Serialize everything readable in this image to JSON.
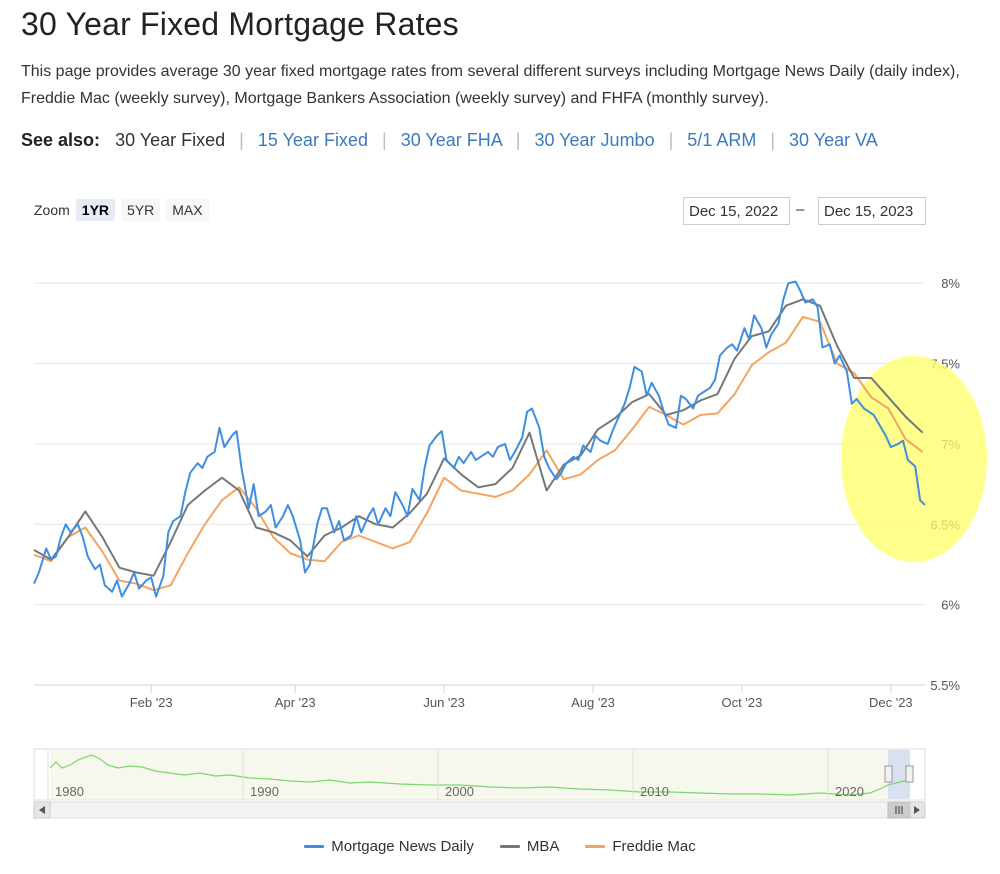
{
  "page": {
    "title": "30 Year Fixed Mortgage Rates",
    "description": "This page provides average 30 year fixed mortgage rates from several different surveys including Mortgage News Daily (daily index), Freddie Mac (weekly survey), Mortgage Bankers Association (weekly survey) and FHFA (monthly survey)."
  },
  "see_also": {
    "label": "See also:",
    "current": "30 Year Fixed",
    "links": [
      "15 Year Fixed",
      "30 Year FHA",
      "30 Year Jumbo",
      "5/1 ARM",
      "30 Year VA"
    ],
    "separator": "|"
  },
  "zoom": {
    "label": "Zoom",
    "buttons": [
      "1YR",
      "5YR",
      "MAX"
    ],
    "active": "1YR"
  },
  "range": {
    "from": "Dec 15, 2022",
    "to": "Dec 15, 2023",
    "separator": "–"
  },
  "colors": {
    "mnd": "#3f8fe0",
    "mba": "#777777",
    "freddie": "#f4a45f",
    "navigator": "#7bd66b",
    "highlight": "#ffff66"
  },
  "legend": [
    "Mortgage News Daily",
    "MBA",
    "Freddie Mac"
  ],
  "navigator": {
    "years": [
      "1980",
      "1990",
      "2000",
      "2010",
      "2020"
    ]
  },
  "chart_data": {
    "type": "line",
    "title": "",
    "x_range": [
      "2022-12-15",
      "2023-12-15"
    ],
    "xlabel": "",
    "ylabel": "",
    "x_tick_labels": [
      "Feb '23",
      "Apr '23",
      "Jun '23",
      "Aug '23",
      "Oct '23",
      "Dec '23"
    ],
    "x_tick_dates": [
      "2023-02-01",
      "2023-04-01",
      "2023-06-01",
      "2023-08-01",
      "2023-10-01",
      "2023-12-01"
    ],
    "y_tick_labels": [
      "5.5%",
      "6%",
      "6.5%",
      "7%",
      "7.5%",
      "8%"
    ],
    "y_ticks": [
      5.5,
      6,
      6.5,
      7,
      7.5,
      8
    ],
    "ylim": [
      5.5,
      8.25
    ],
    "annotation": "yellow ellipse highlighting Nov–Dec 2023 rate decline",
    "series": [
      {
        "name": "Mortgage News Daily",
        "points": [
          [
            "2022-12-15",
            6.13
          ],
          [
            "2022-12-17",
            6.2
          ],
          [
            "2022-12-20",
            6.35
          ],
          [
            "2022-12-22",
            6.28
          ],
          [
            "2022-12-24",
            6.3
          ],
          [
            "2022-12-26",
            6.42
          ],
          [
            "2022-12-28",
            6.5
          ],
          [
            "2022-12-30",
            6.45
          ],
          [
            "2023-01-02",
            6.5
          ],
          [
            "2023-01-04",
            6.42
          ],
          [
            "2023-01-06",
            6.3
          ],
          [
            "2023-01-09",
            6.22
          ],
          [
            "2023-01-11",
            6.25
          ],
          [
            "2023-01-13",
            6.12
          ],
          [
            "2023-01-16",
            6.08
          ],
          [
            "2023-01-18",
            6.15
          ],
          [
            "2023-01-20",
            6.05
          ],
          [
            "2023-01-23",
            6.13
          ],
          [
            "2023-01-25",
            6.2
          ],
          [
            "2023-01-27",
            6.1
          ],
          [
            "2023-01-30",
            6.15
          ],
          [
            "2023-02-01",
            6.17
          ],
          [
            "2023-02-03",
            6.05
          ],
          [
            "2023-02-06",
            6.18
          ],
          [
            "2023-02-08",
            6.45
          ],
          [
            "2023-02-10",
            6.52
          ],
          [
            "2023-02-13",
            6.55
          ],
          [
            "2023-02-15",
            6.7
          ],
          [
            "2023-02-17",
            6.82
          ],
          [
            "2023-02-20",
            6.88
          ],
          [
            "2023-02-22",
            6.85
          ],
          [
            "2023-02-24",
            6.92
          ],
          [
            "2023-02-27",
            6.95
          ],
          [
            "2023-03-01",
            7.1
          ],
          [
            "2023-03-03",
            6.98
          ],
          [
            "2023-03-06",
            7.05
          ],
          [
            "2023-03-08",
            7.08
          ],
          [
            "2023-03-10",
            6.85
          ],
          [
            "2023-03-13",
            6.6
          ],
          [
            "2023-03-15",
            6.75
          ],
          [
            "2023-03-17",
            6.55
          ],
          [
            "2023-03-20",
            6.58
          ],
          [
            "2023-03-22",
            6.62
          ],
          [
            "2023-03-24",
            6.48
          ],
          [
            "2023-03-27",
            6.55
          ],
          [
            "2023-03-29",
            6.62
          ],
          [
            "2023-03-31",
            6.55
          ],
          [
            "2023-04-03",
            6.4
          ],
          [
            "2023-04-05",
            6.2
          ],
          [
            "2023-04-07",
            6.25
          ],
          [
            "2023-04-10",
            6.5
          ],
          [
            "2023-04-12",
            6.6
          ],
          [
            "2023-04-14",
            6.6
          ],
          [
            "2023-04-17",
            6.45
          ],
          [
            "2023-04-19",
            6.52
          ],
          [
            "2023-04-21",
            6.4
          ],
          [
            "2023-04-24",
            6.43
          ],
          [
            "2023-04-26",
            6.55
          ],
          [
            "2023-04-28",
            6.45
          ],
          [
            "2023-05-01",
            6.55
          ],
          [
            "2023-05-03",
            6.6
          ],
          [
            "2023-05-05",
            6.5
          ],
          [
            "2023-05-08",
            6.6
          ],
          [
            "2023-05-10",
            6.55
          ],
          [
            "2023-05-12",
            6.7
          ],
          [
            "2023-05-15",
            6.62
          ],
          [
            "2023-05-17",
            6.55
          ],
          [
            "2023-05-19",
            6.72
          ],
          [
            "2023-05-22",
            6.65
          ],
          [
            "2023-05-24",
            6.85
          ],
          [
            "2023-05-26",
            6.99
          ],
          [
            "2023-05-29",
            7.05
          ],
          [
            "2023-05-31",
            7.08
          ],
          [
            "2023-06-02",
            6.9
          ],
          [
            "2023-06-05",
            6.85
          ],
          [
            "2023-06-07",
            6.92
          ],
          [
            "2023-06-09",
            6.88
          ],
          [
            "2023-06-12",
            6.95
          ],
          [
            "2023-06-14",
            6.9
          ],
          [
            "2023-06-16",
            6.92
          ],
          [
            "2023-06-19",
            6.95
          ],
          [
            "2023-06-21",
            6.92
          ],
          [
            "2023-06-23",
            6.98
          ],
          [
            "2023-06-26",
            7.0
          ],
          [
            "2023-06-28",
            6.9
          ],
          [
            "2023-06-30",
            6.95
          ],
          [
            "2023-07-03",
            7.04
          ],
          [
            "2023-07-05",
            7.2
          ],
          [
            "2023-07-07",
            7.22
          ],
          [
            "2023-07-10",
            7.1
          ],
          [
            "2023-07-12",
            6.92
          ],
          [
            "2023-07-14",
            6.85
          ],
          [
            "2023-07-17",
            6.78
          ],
          [
            "2023-07-19",
            6.82
          ],
          [
            "2023-07-21",
            6.88
          ],
          [
            "2023-07-24",
            6.92
          ],
          [
            "2023-07-26",
            6.9
          ],
          [
            "2023-07-28",
            6.99
          ],
          [
            "2023-07-31",
            6.95
          ],
          [
            "2023-08-02",
            7.05
          ],
          [
            "2023-08-04",
            7.02
          ],
          [
            "2023-08-07",
            7.0
          ],
          [
            "2023-08-09",
            7.08
          ],
          [
            "2023-08-11",
            7.15
          ],
          [
            "2023-08-14",
            7.25
          ],
          [
            "2023-08-16",
            7.35
          ],
          [
            "2023-08-18",
            7.48
          ],
          [
            "2023-08-21",
            7.45
          ],
          [
            "2023-08-23",
            7.3
          ],
          [
            "2023-08-25",
            7.38
          ],
          [
            "2023-08-28",
            7.3
          ],
          [
            "2023-08-30",
            7.2
          ],
          [
            "2023-09-01",
            7.12
          ],
          [
            "2023-09-04",
            7.1
          ],
          [
            "2023-09-06",
            7.3
          ],
          [
            "2023-09-08",
            7.28
          ],
          [
            "2023-09-11",
            7.22
          ],
          [
            "2023-09-13",
            7.3
          ],
          [
            "2023-09-15",
            7.32
          ],
          [
            "2023-09-18",
            7.35
          ],
          [
            "2023-09-20",
            7.4
          ],
          [
            "2023-09-22",
            7.55
          ],
          [
            "2023-09-25",
            7.6
          ],
          [
            "2023-09-27",
            7.62
          ],
          [
            "2023-09-29",
            7.58
          ],
          [
            "2023-10-02",
            7.72
          ],
          [
            "2023-10-04",
            7.65
          ],
          [
            "2023-10-06",
            7.8
          ],
          [
            "2023-10-09",
            7.72
          ],
          [
            "2023-10-11",
            7.6
          ],
          [
            "2023-10-13",
            7.68
          ],
          [
            "2023-10-16",
            7.75
          ],
          [
            "2023-10-18",
            7.9
          ],
          [
            "2023-10-20",
            8.0
          ],
          [
            "2023-10-23",
            8.01
          ],
          [
            "2023-10-25",
            7.95
          ],
          [
            "2023-10-27",
            7.88
          ],
          [
            "2023-10-30",
            7.9
          ],
          [
            "2023-11-01",
            7.85
          ],
          [
            "2023-11-03",
            7.6
          ],
          [
            "2023-11-06",
            7.62
          ],
          [
            "2023-11-08",
            7.5
          ],
          [
            "2023-11-10",
            7.55
          ],
          [
            "2023-11-13",
            7.45
          ],
          [
            "2023-11-15",
            7.25
          ],
          [
            "2023-11-17",
            7.28
          ],
          [
            "2023-11-20",
            7.22
          ],
          [
            "2023-11-22",
            7.2
          ],
          [
            "2023-11-24",
            7.18
          ],
          [
            "2023-11-27",
            7.1
          ],
          [
            "2023-11-29",
            7.05
          ],
          [
            "2023-12-01",
            6.98
          ],
          [
            "2023-12-04",
            7.0
          ],
          [
            "2023-12-06",
            7.02
          ],
          [
            "2023-12-08",
            6.9
          ],
          [
            "2023-12-11",
            6.86
          ],
          [
            "2023-12-13",
            6.65
          ],
          [
            "2023-12-15",
            6.62
          ]
        ]
      },
      {
        "name": "MBA",
        "points": [
          [
            "2022-12-15",
            6.34
          ],
          [
            "2022-12-22",
            6.28
          ],
          [
            "2022-12-29",
            6.42
          ],
          [
            "2023-01-05",
            6.58
          ],
          [
            "2023-01-12",
            6.42
          ],
          [
            "2023-01-19",
            6.23
          ],
          [
            "2023-01-26",
            6.2
          ],
          [
            "2023-02-02",
            6.18
          ],
          [
            "2023-02-09",
            6.39
          ],
          [
            "2023-02-16",
            6.62
          ],
          [
            "2023-02-23",
            6.71
          ],
          [
            "2023-03-02",
            6.79
          ],
          [
            "2023-03-09",
            6.71
          ],
          [
            "2023-03-16",
            6.48
          ],
          [
            "2023-03-23",
            6.45
          ],
          [
            "2023-03-30",
            6.4
          ],
          [
            "2023-04-06",
            6.3
          ],
          [
            "2023-04-13",
            6.43
          ],
          [
            "2023-04-20",
            6.48
          ],
          [
            "2023-04-27",
            6.55
          ],
          [
            "2023-05-04",
            6.5
          ],
          [
            "2023-05-11",
            6.48
          ],
          [
            "2023-05-18",
            6.57
          ],
          [
            "2023-05-25",
            6.69
          ],
          [
            "2023-06-01",
            6.91
          ],
          [
            "2023-06-08",
            6.81
          ],
          [
            "2023-06-15",
            6.73
          ],
          [
            "2023-06-22",
            6.75
          ],
          [
            "2023-06-29",
            6.85
          ],
          [
            "2023-07-06",
            7.07
          ],
          [
            "2023-07-13",
            6.71
          ],
          [
            "2023-07-20",
            6.87
          ],
          [
            "2023-07-27",
            6.93
          ],
          [
            "2023-08-03",
            7.09
          ],
          [
            "2023-08-10",
            7.16
          ],
          [
            "2023-08-17",
            7.26
          ],
          [
            "2023-08-24",
            7.31
          ],
          [
            "2023-08-31",
            7.18
          ],
          [
            "2023-09-07",
            7.21
          ],
          [
            "2023-09-14",
            7.27
          ],
          [
            "2023-09-21",
            7.31
          ],
          [
            "2023-09-28",
            7.53
          ],
          [
            "2023-10-05",
            7.67
          ],
          [
            "2023-10-12",
            7.7
          ],
          [
            "2023-10-19",
            7.86
          ],
          [
            "2023-10-26",
            7.9
          ],
          [
            "2023-11-02",
            7.86
          ],
          [
            "2023-11-09",
            7.61
          ],
          [
            "2023-11-16",
            7.41
          ],
          [
            "2023-11-23",
            7.41
          ],
          [
            "2023-11-30",
            7.29
          ],
          [
            "2023-12-07",
            7.17
          ],
          [
            "2023-12-14",
            7.07
          ]
        ]
      },
      {
        "name": "Freddie Mac",
        "points": [
          [
            "2022-12-15",
            6.31
          ],
          [
            "2022-12-22",
            6.27
          ],
          [
            "2022-12-29",
            6.42
          ],
          [
            "2023-01-05",
            6.48
          ],
          [
            "2023-01-12",
            6.33
          ],
          [
            "2023-01-19",
            6.15
          ],
          [
            "2023-01-26",
            6.13
          ],
          [
            "2023-02-02",
            6.09
          ],
          [
            "2023-02-09",
            6.12
          ],
          [
            "2023-02-16",
            6.32
          ],
          [
            "2023-02-23",
            6.5
          ],
          [
            "2023-03-02",
            6.65
          ],
          [
            "2023-03-09",
            6.73
          ],
          [
            "2023-03-16",
            6.6
          ],
          [
            "2023-03-23",
            6.42
          ],
          [
            "2023-03-30",
            6.32
          ],
          [
            "2023-04-06",
            6.28
          ],
          [
            "2023-04-13",
            6.27
          ],
          [
            "2023-04-20",
            6.39
          ],
          [
            "2023-04-27",
            6.43
          ],
          [
            "2023-05-04",
            6.39
          ],
          [
            "2023-05-11",
            6.35
          ],
          [
            "2023-05-18",
            6.39
          ],
          [
            "2023-05-25",
            6.57
          ],
          [
            "2023-06-01",
            6.79
          ],
          [
            "2023-06-08",
            6.71
          ],
          [
            "2023-06-15",
            6.69
          ],
          [
            "2023-06-22",
            6.67
          ],
          [
            "2023-06-29",
            6.71
          ],
          [
            "2023-07-06",
            6.81
          ],
          [
            "2023-07-13",
            6.96
          ],
          [
            "2023-07-20",
            6.78
          ],
          [
            "2023-07-27",
            6.81
          ],
          [
            "2023-08-03",
            6.9
          ],
          [
            "2023-08-10",
            6.96
          ],
          [
            "2023-08-17",
            7.09
          ],
          [
            "2023-08-24",
            7.23
          ],
          [
            "2023-08-31",
            7.18
          ],
          [
            "2023-09-07",
            7.12
          ],
          [
            "2023-09-14",
            7.18
          ],
          [
            "2023-09-21",
            7.19
          ],
          [
            "2023-09-28",
            7.31
          ],
          [
            "2023-10-05",
            7.49
          ],
          [
            "2023-10-12",
            7.57
          ],
          [
            "2023-10-19",
            7.63
          ],
          [
            "2023-10-26",
            7.79
          ],
          [
            "2023-11-02",
            7.76
          ],
          [
            "2023-11-09",
            7.5
          ],
          [
            "2023-11-16",
            7.44
          ],
          [
            "2023-11-23",
            7.29
          ],
          [
            "2023-11-30",
            7.22
          ],
          [
            "2023-12-07",
            7.03
          ],
          [
            "2023-12-14",
            6.95
          ]
        ]
      }
    ]
  }
}
